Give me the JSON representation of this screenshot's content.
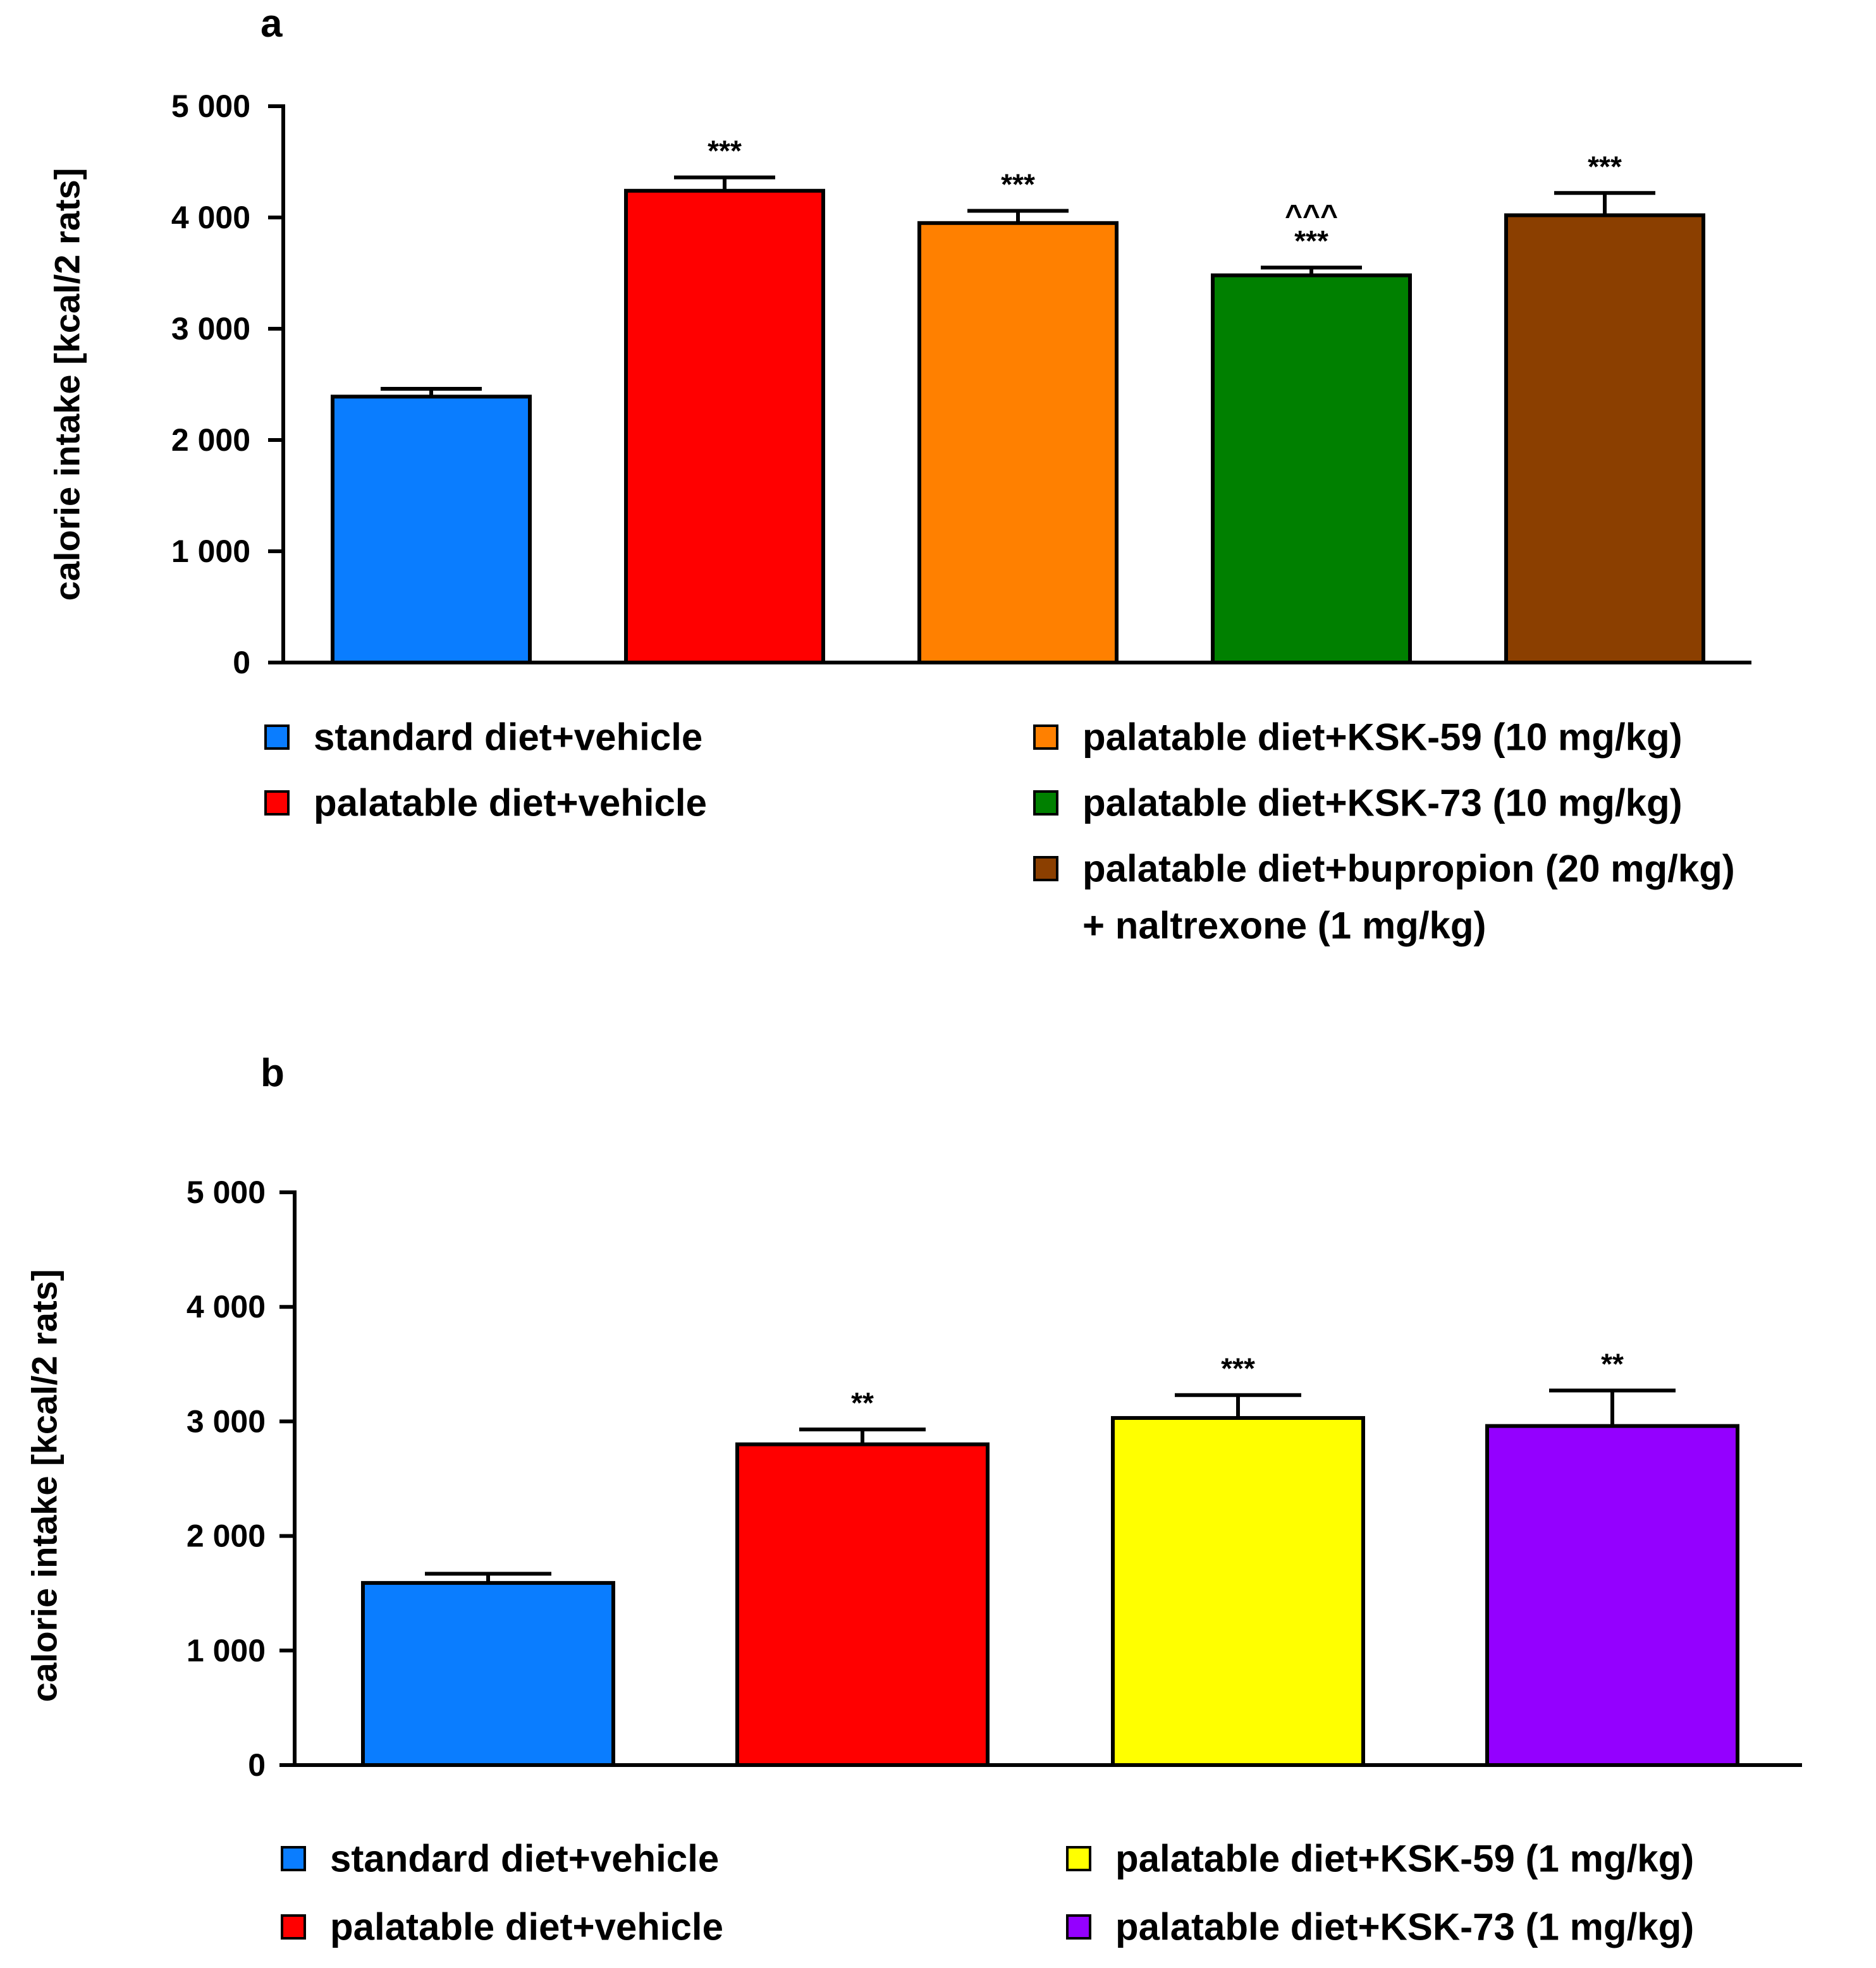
{
  "chart_data": [
    {
      "panel_label": "a",
      "type": "bar",
      "ylabel": "calorie intake [kcal/2 rats]",
      "ylim": [
        0,
        5000
      ],
      "yticks": [
        0,
        1000,
        2000,
        3000,
        4000,
        5000
      ],
      "ytick_labels": [
        "0",
        "1 000",
        "2 000",
        "3 000",
        "4 000",
        "5 000"
      ],
      "grid": false,
      "legend_position": "below",
      "bars": [
        {
          "legend": "standard diet+vehicle",
          "legend_cont": "",
          "color": "#0A7DFF",
          "value": 2390,
          "error": 70,
          "annotation_top": "",
          "annotation": ""
        },
        {
          "legend": "palatable diet+vehicle",
          "legend_cont": "",
          "color": "#FF0000",
          "value": 4240,
          "error": 120,
          "annotation_top": "",
          "annotation": "***"
        },
        {
          "legend": "palatable diet+KSK-59 (10 mg/kg)",
          "legend_cont": "",
          "color": "#FF8000",
          "value": 3950,
          "error": 110,
          "annotation_top": "",
          "annotation": "***"
        },
        {
          "legend": "palatable diet+KSK-73 (10 mg/kg)",
          "legend_cont": "",
          "color": "#008000",
          "value": 3480,
          "error": 70,
          "annotation_top": "^^^",
          "annotation": "***"
        },
        {
          "legend": "palatable diet+bupropion (20 mg/kg)",
          "legend_cont": "+ naltrexone (1 mg/kg)",
          "color": "#8B3F00",
          "value": 4020,
          "error": 200,
          "annotation_top": "",
          "annotation": "***"
        }
      ]
    },
    {
      "panel_label": "b",
      "type": "bar",
      "ylabel": "calorie intake [kcal/2 rats]",
      "ylim": [
        0,
        5000
      ],
      "yticks": [
        0,
        1000,
        2000,
        3000,
        4000,
        5000
      ],
      "ytick_labels": [
        "0",
        "1 000",
        "2 000",
        "3 000",
        "4 000",
        "5 000"
      ],
      "grid": false,
      "legend_position": "below",
      "bars": [
        {
          "legend": "standard diet+vehicle",
          "legend_cont": "",
          "color": "#0A7DFF",
          "value": 1590,
          "error": 80,
          "annotation_top": "",
          "annotation": ""
        },
        {
          "legend": "palatable diet+vehicle",
          "legend_cont": "",
          "color": "#FF0000",
          "value": 2800,
          "error": 130,
          "annotation_top": "",
          "annotation": "**"
        },
        {
          "legend": "palatable diet+KSK-59 (1 mg/kg)",
          "legend_cont": "",
          "color": "#FFFF00",
          "value": 3030,
          "error": 200,
          "annotation_top": "",
          "annotation": "***"
        },
        {
          "legend": "palatable diet+KSK-73 (1 mg/kg)",
          "legend_cont": "",
          "color": "#9400FF",
          "value": 2960,
          "error": 310,
          "annotation_top": "",
          "annotation": "**"
        }
      ]
    }
  ]
}
